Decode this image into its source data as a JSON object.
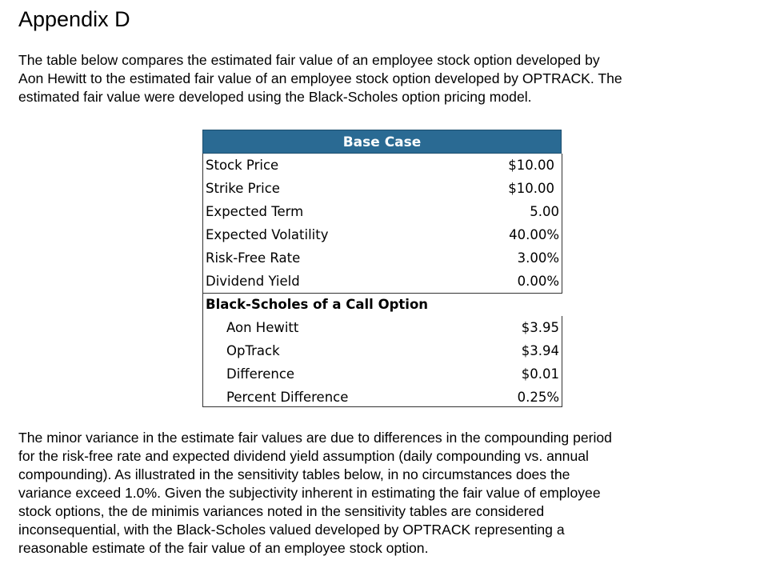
{
  "title": "Appendix D",
  "intro": [
    "The table below compares the estimated fair value of an employee stock option developed by",
    "Aon Hewitt to the estimated fair value of an employee stock option developed by OPTRACK.  The",
    "estimated fair value were developed using the Black-Scholes option pricing model."
  ],
  "table": {
    "header": "Base Case",
    "inputs": [
      {
        "label": "Stock Price",
        "value": "$10.00"
      },
      {
        "label": "Strike Price",
        "value": "$10.00"
      },
      {
        "label": "Expected Term",
        "value": "5.00"
      },
      {
        "label": "Expected Volatility",
        "value": "40.00%"
      },
      {
        "label": "Risk-Free Rate",
        "value": "3.00%"
      },
      {
        "label": "Dividend Yield",
        "value": "0.00%"
      }
    ],
    "section_label": "Black-Scholes of a Call Option",
    "results": [
      {
        "label": "Aon Hewitt",
        "value": "$3.95"
      },
      {
        "label": "OpTrack",
        "value": "$3.94"
      },
      {
        "label": "Difference",
        "value": "$0.01"
      },
      {
        "label": "Percent Difference",
        "value": "0.25%"
      }
    ]
  },
  "closing": [
    "The minor variance in the estimate fair values are due to differences in the compounding period",
    "for the risk-free rate and expected dividend yield assumption (daily compounding vs. annual",
    "compounding).  As illustrated in the sensitivity tables below, in no circumstances does the",
    "variance exceed 1.0%.  Given the subjectivity inherent in estimating the fair value of employee",
    "stock options, the de minimis variances noted in the sensitivity tables are considered",
    "inconsequential, with the Black-Scholes valued developed by OPTRACK representing a",
    "reasonable estimate of the fair value of an employee stock option."
  ]
}
